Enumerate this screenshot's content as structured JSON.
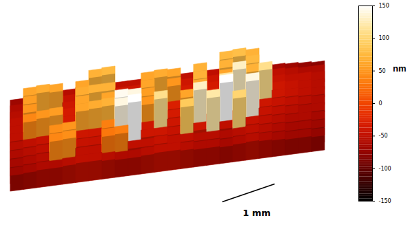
{
  "chart_data": {
    "type": "surface",
    "cells": [
      [
        -70,
        -65,
        -60,
        -60,
        -55,
        -50,
        -50,
        -55,
        -60,
        -60,
        -55,
        -50,
        -50,
        -55,
        -60,
        -60,
        -65,
        -60,
        -55,
        -60,
        -65,
        -70,
        -70,
        -75
      ],
      [
        -65,
        -60,
        -55,
        40,
        45,
        -50,
        -50,
        30,
        35,
        -50,
        -50,
        -45,
        -50,
        -50,
        -55,
        -55,
        -60,
        -55,
        -50,
        -55,
        -60,
        -65,
        -65,
        -70
      ],
      [
        -60,
        -55,
        -50,
        45,
        50,
        -45,
        -45,
        35,
        140,
        150,
        -40,
        -40,
        -45,
        90,
        -40,
        120,
        -50,
        100,
        -45,
        -50,
        -55,
        -60,
        -60,
        -65
      ],
      [
        -55,
        -50,
        -45,
        -40,
        -40,
        -40,
        -40,
        -40,
        145,
        140,
        -40,
        110,
        -40,
        -40,
        130,
        -40,
        150,
        -40,
        140,
        -45,
        -50,
        -55,
        -60,
        -60
      ],
      [
        -50,
        40,
        50,
        55,
        -35,
        60,
        65,
        70,
        60,
        -35,
        50,
        55,
        -35,
        60,
        65,
        -35,
        120,
        -40,
        90,
        -40,
        -45,
        -50,
        -55,
        -60
      ],
      [
        -50,
        50,
        -35,
        -35,
        -35,
        60,
        -30,
        60,
        -30,
        -30,
        55,
        -30,
        -30,
        -30,
        65,
        -30,
        -35,
        130,
        -35,
        110,
        -40,
        -45,
        -50,
        -55
      ],
      [
        -50,
        55,
        -35,
        -35,
        -35,
        65,
        70,
        70,
        -30,
        -30,
        60,
        -30,
        50,
        -30,
        70,
        -30,
        60,
        65,
        70,
        -35,
        -40,
        -45,
        -50,
        -55
      ],
      [
        -55,
        60,
        65,
        60,
        -40,
        60,
        -35,
        -35,
        -35,
        -35,
        60,
        65,
        60,
        -35,
        70,
        -35,
        70,
        -35,
        75,
        -40,
        -45,
        -50,
        -50,
        -55
      ],
      [
        -60,
        -55,
        -50,
        -45,
        -45,
        -40,
        70,
        75,
        -40,
        -40,
        -40,
        -40,
        -40,
        -40,
        -40,
        -40,
        75,
        80,
        70,
        -45,
        -50,
        -55,
        -60,
        -60
      ],
      [
        -70,
        -65,
        -60,
        -55,
        -55,
        -50,
        -50,
        -50,
        -50,
        -50,
        -50,
        -50,
        -50,
        -50,
        -50,
        -50,
        -50,
        -55,
        -55,
        -60,
        -65,
        -70,
        -75,
        -80
      ]
    ],
    "zlim": [
      -150,
      150
    ],
    "zticks": [
      150,
      100,
      50,
      0,
      -50,
      -100,
      -150
    ],
    "zlabel": "nm",
    "scale_bar": "1 mm"
  }
}
